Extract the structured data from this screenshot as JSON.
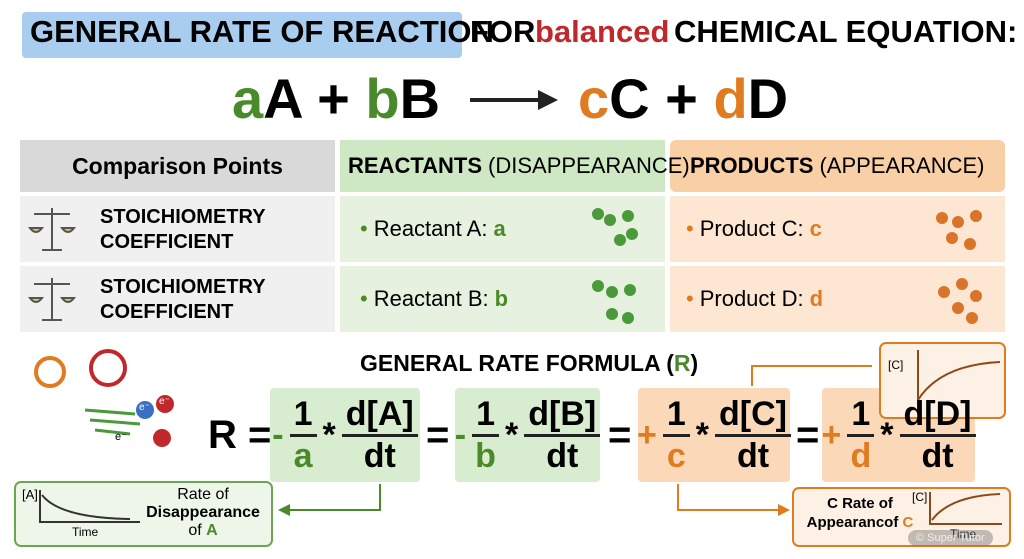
{
  "header": {
    "title_highlight": "GENERAL RATE OF REACTION",
    "title_for": "FOR",
    "title_balanced": "balanced",
    "title_rest": "CHEMICAL EQUATION:"
  },
  "equation": {
    "r1_coef": "a",
    "r1_species": "A",
    "plus_1": "+",
    "r2_coef": "b",
    "r2_species": "B",
    "p1_coef": "c",
    "p1_species": "C",
    "plus_2": "+",
    "p2_coef": "d",
    "p2_species": "D"
  },
  "table": {
    "header": {
      "comparison": "Comparison Points",
      "reactants": "REACTANTS",
      "reactants_note": "(DISAPPEARANCE)",
      "products": "PRODUCTS",
      "products_note": "(APPEARANCE)"
    },
    "rows": [
      {
        "point": "STOICHIOMETRY COEFFICIENT",
        "reactant_label": "Reactant A:",
        "reactant_coef": "a",
        "product_label": "Product C:",
        "product_coef": "c"
      },
      {
        "point": "STOICHIOMETRY COEFFICIENT",
        "reactant_label": "Reactant B:",
        "reactant_coef": "b",
        "product_label": "Product D:",
        "product_coef": "d"
      }
    ]
  },
  "formula": {
    "title": "GENERAL RATE FORMULA (",
    "title_symbol": "R",
    "title_close": ")",
    "lhs": "R",
    "equals": "=",
    "times": "*",
    "terms": [
      {
        "sign": "-",
        "numerator": "1",
        "denominator": "a",
        "derivative_top": "d[A]",
        "derivative_bottom": "dt"
      },
      {
        "sign": "-",
        "numerator": "1",
        "denominator": "b",
        "derivative_top": "d[B]",
        "derivative_bottom": "dt"
      },
      {
        "sign": "+",
        "numerator": "1",
        "denominator": "c",
        "derivative_top": "d[C]",
        "derivative_bottom": "dt"
      },
      {
        "sign": "+",
        "numerator": "1",
        "denominator": "d",
        "derivative_top": "d[D]",
        "derivative_bottom": "dt"
      }
    ]
  },
  "disappearance_graph": {
    "y_label": "[A]",
    "x_label": "Time",
    "caption_1": "Rate of",
    "caption_2": "Disappearance",
    "caption_3": "of",
    "caption_species": "A"
  },
  "appearance_graph": {
    "top_y_label": "[C]",
    "caption_1": "C Rate of",
    "caption_2": "Appearanc",
    "caption_3": "of",
    "caption_species": "C",
    "y_label": "[C]",
    "x_label": "Time"
  },
  "electrons": [
    "e⁻",
    "e⁻",
    "e⁻"
  ],
  "watermark": "© Super Tutor"
}
